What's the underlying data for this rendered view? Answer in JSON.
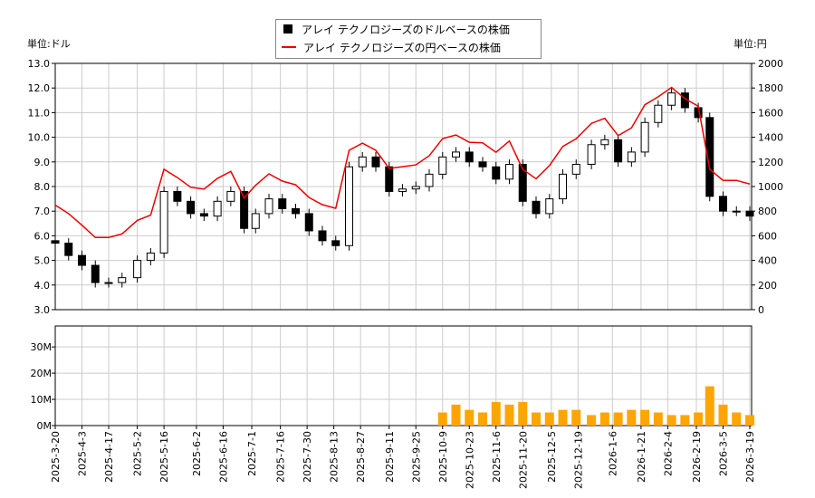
{
  "legend": {
    "usd": "アレイ テクノロジーズのドルベースの株価",
    "jpy": "アレイ テクノロジーズの円ベースの株価"
  },
  "units": {
    "left": "単位:ドル",
    "right": "単位:円"
  },
  "colors": {
    "candle": "#000000",
    "jpy_line": "#ee0000",
    "volume": "#ffa500",
    "grid": "#cccccc"
  },
  "chart_data": [
    {
      "type": "candlestick+line",
      "left_ylim": [
        3,
        13
      ],
      "right_ylim": [
        0,
        2000
      ],
      "left_ticks": [
        "3.0",
        "4.0",
        "5.0",
        "6.0",
        "7.0",
        "8.0",
        "9.0",
        "10.0",
        "11.0",
        "12.0",
        "13.0"
      ],
      "right_ticks": [
        "0",
        "200",
        "400",
        "600",
        "800",
        "1000",
        "1200",
        "1400",
        "1600",
        "1800",
        "2000"
      ],
      "grid": true,
      "dates": [
        "2025-03-20",
        "2025-03-27",
        "2025-04-03",
        "2025-04-10",
        "2025-04-17",
        "2025-04-24",
        "2025-05-02",
        "2025-05-09",
        "2025-05-16",
        "2025-05-23",
        "2025-05-30",
        "2025-06-06",
        "2025-06-13",
        "2025-06-20",
        "2025-06-27",
        "2025-07-03",
        "2025-07-10",
        "2025-07-17",
        "2025-07-24",
        "2025-07-31",
        "2025-08-07",
        "2025-08-14",
        "2025-08-21",
        "2025-08-28",
        "2025-09-04",
        "2025-09-11",
        "2025-09-18",
        "2025-09-25",
        "2025-10-02",
        "2025-10-09",
        "2025-10-16",
        "2025-10-23",
        "2025-10-30",
        "2025-11-06",
        "2025-11-13",
        "2025-11-20",
        "2025-11-27",
        "2025-12-04",
        "2025-12-11",
        "2025-12-18",
        "2025-12-26",
        "2026-01-02",
        "2026-01-09",
        "2026-01-16",
        "2026-01-23",
        "2026-01-30",
        "2026-02-06",
        "2026-02-13",
        "2026-02-20",
        "2026-02-26",
        "2026-03-05",
        "2026-03-12",
        "2026-03-19"
      ],
      "usd_close": [
        5.7,
        5.2,
        4.8,
        4.1,
        4.1,
        4.3,
        5.0,
        5.3,
        7.8,
        7.4,
        6.9,
        6.8,
        7.4,
        7.8,
        6.3,
        6.9,
        7.5,
        7.1,
        6.9,
        6.2,
        5.8,
        5.6,
        8.8,
        9.2,
        8.8,
        7.8,
        7.9,
        8.0,
        8.5,
        9.2,
        9.4,
        9.0,
        8.8,
        8.3,
        8.9,
        7.4,
        6.9,
        7.5,
        8.5,
        8.9,
        9.7,
        9.9,
        9.0,
        9.4,
        10.6,
        11.3,
        11.8,
        11.2,
        10.8,
        7.6,
        7.0,
        7.0,
        6.8
      ],
      "jpy_close": [
        849,
        780,
        686,
        586,
        586,
        615,
        725,
        768,
        1140,
        1073,
        994,
        979,
        1066,
        1123,
        907,
        1010,
        1103,
        1044,
        1014,
        911,
        853,
        823,
        1294,
        1352,
        1294,
        1147,
        1161,
        1176,
        1250,
        1389,
        1419,
        1359,
        1355,
        1278,
        1370,
        1140,
        1063,
        1170,
        1326,
        1388,
        1513,
        1554,
        1413,
        1476,
        1664,
        1729,
        1805,
        1714,
        1652,
        1140,
        1050,
        1050,
        1020
      ]
    },
    {
      "type": "bar",
      "ylim": [
        0,
        38
      ],
      "yticks": [
        "0M",
        "10M",
        "20M",
        "30M"
      ],
      "volume_millions": [
        0,
        0,
        0,
        0,
        0,
        0,
        0,
        0,
        0,
        0,
        0,
        0,
        0,
        0,
        0,
        0,
        0,
        0,
        0,
        0,
        0,
        0,
        0,
        0,
        0,
        0,
        0,
        0,
        0,
        5,
        8,
        6,
        5,
        9,
        8,
        9,
        5,
        5,
        6,
        6,
        4,
        5,
        5,
        6,
        6,
        5,
        4,
        4,
        5,
        15,
        8,
        5,
        4
      ],
      "xticks": [
        "2025-3-20",
        "2025-4-3",
        "2025-4-17",
        "2025-5-2",
        "2025-5-16",
        "2025-6-2",
        "2025-6-16",
        "2025-7-1",
        "2025-7-16",
        "2025-7-30",
        "2025-8-13",
        "2025-8-27",
        "2025-9-11",
        "2025-9-25",
        "2025-10-9",
        "2025-10-23",
        "2025-11-6",
        "2025-11-20",
        "2025-12-5",
        "2025-12-19",
        "2026-1-6",
        "2026-1-21",
        "2026-2-4",
        "2026-2-19",
        "2026-3-5",
        "2026-3-19"
      ]
    }
  ]
}
